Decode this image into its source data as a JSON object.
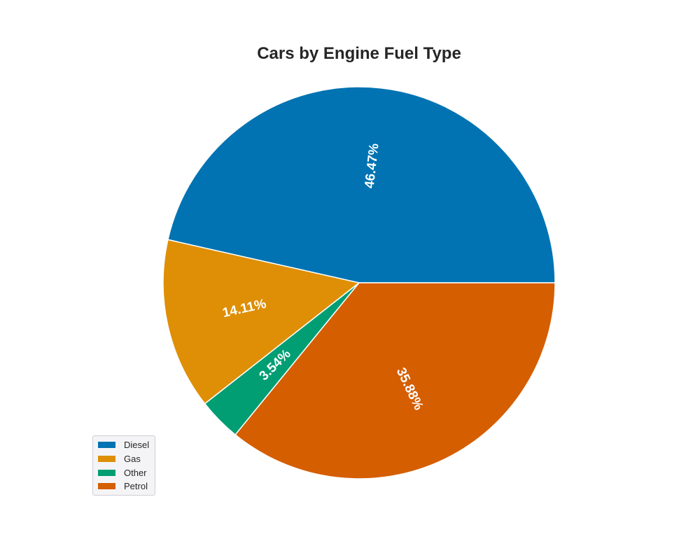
{
  "chart_data": {
    "type": "pie",
    "title": "Cars by Engine Fuel Type",
    "slices": [
      {
        "label": "Diesel",
        "value": 46.47,
        "text": "46.47%",
        "color": "#0173b2"
      },
      {
        "label": "Gas",
        "value": 14.11,
        "text": "14.11%",
        "color": "#de8f05"
      },
      {
        "label": "Other",
        "value": 3.54,
        "text": "3.54%",
        "color": "#029e73"
      },
      {
        "label": "Petrol",
        "value": 35.88,
        "text": "35.88%",
        "color": "#d55e00"
      }
    ],
    "start_angle_deg": 0,
    "direction": "counterclockwise",
    "legend_position": "lower-left",
    "label_color": "#ffffff",
    "edge_color": "#ffffff"
  }
}
